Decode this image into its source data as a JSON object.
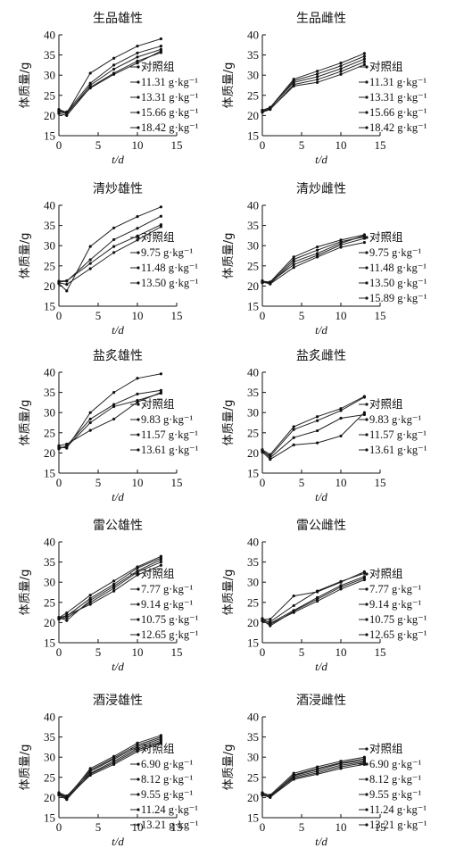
{
  "chart_data": [
    {
      "type": "line",
      "title": "生品雄性",
      "xlabel": "t/d",
      "ylabel": "体质量/g",
      "xlim": [
        0,
        15
      ],
      "ylim": [
        15,
        40
      ],
      "xticks": [
        0,
        5,
        10,
        15
      ],
      "yticks": [
        15,
        20,
        25,
        30,
        35,
        40
      ],
      "x": [
        0,
        1,
        4,
        7,
        10,
        13
      ],
      "series": [
        {
          "name": "对照组",
          "values": [
            21.3,
            20.6,
            30.5,
            34.2,
            37.2,
            39.0
          ]
        },
        {
          "name": "11.31 g·kg⁻¹",
          "values": [
            20.8,
            20.9,
            28.0,
            32.5,
            35.5,
            37.2
          ]
        },
        {
          "name": "13.31 g·kg⁻¹",
          "values": [
            21.0,
            20.4,
            27.5,
            31.5,
            34.5,
            36.4
          ]
        },
        {
          "name": "15.66 g·kg⁻¹",
          "values": [
            20.5,
            20.0,
            27.0,
            30.5,
            33.5,
            35.6
          ]
        },
        {
          "name": "18.42 g·kg⁻¹",
          "values": [
            21.5,
            20.8,
            26.8,
            30.2,
            33.0,
            36.0
          ]
        }
      ]
    },
    {
      "type": "line",
      "title": "生品雌性",
      "xlabel": "t/d",
      "ylabel": "体质量/g",
      "xlim": [
        0,
        15
      ],
      "ylim": [
        15,
        40
      ],
      "xticks": [
        0,
        5,
        10,
        15
      ],
      "yticks": [
        15,
        20,
        25,
        30,
        35,
        40
      ],
      "x": [
        0,
        1,
        4,
        7,
        10,
        13
      ],
      "series": [
        {
          "name": "对照组",
          "values": [
            21.3,
            22.0,
            29.0,
            31.0,
            33.0,
            35.4
          ]
        },
        {
          "name": "11.31 g·kg⁻¹",
          "values": [
            21.0,
            21.8,
            28.6,
            30.3,
            32.3,
            34.7
          ]
        },
        {
          "name": "13.31 g·kg⁻¹",
          "values": [
            21.2,
            22.0,
            28.2,
            29.6,
            31.6,
            34.0
          ]
        },
        {
          "name": "15.66 g·kg⁻¹",
          "values": [
            20.8,
            21.5,
            27.7,
            28.9,
            30.9,
            33.3
          ]
        },
        {
          "name": "18.42 g·kg⁻¹",
          "values": [
            21.0,
            21.6,
            27.3,
            28.2,
            30.2,
            32.6
          ]
        }
      ]
    },
    {
      "type": "line",
      "title": "清炒雄性",
      "xlabel": "t/d",
      "ylabel": "体质量/g",
      "xlim": [
        0,
        15
      ],
      "ylim": [
        15,
        40
      ],
      "xticks": [
        0,
        5,
        10,
        15
      ],
      "yticks": [
        15,
        20,
        25,
        30,
        35,
        40
      ],
      "x": [
        0,
        1,
        4,
        7,
        10,
        13
      ],
      "series": [
        {
          "name": "对照组",
          "values": [
            20.6,
            18.8,
            29.8,
            34.4,
            37.2,
            39.6
          ]
        },
        {
          "name": "9.75 g·kg⁻¹",
          "values": [
            21.0,
            21.2,
            26.5,
            31.5,
            34.3,
            37.3
          ]
        },
        {
          "name": "11.48 g·kg⁻¹",
          "values": [
            21.2,
            21.3,
            25.6,
            29.8,
            32.4,
            35.2
          ]
        },
        {
          "name": "13.50 g·kg⁻¹",
          "values": [
            20.8,
            20.4,
            24.3,
            28.3,
            31.4,
            34.7
          ]
        }
      ]
    },
    {
      "type": "line",
      "title": "清炒雌性",
      "xlabel": "t/d",
      "ylabel": "体质量/g",
      "xlim": [
        0,
        15
      ],
      "ylim": [
        15,
        40
      ],
      "xticks": [
        0,
        5,
        10,
        15
      ],
      "yticks": [
        15,
        20,
        25,
        30,
        35,
        40
      ],
      "x": [
        0,
        1,
        4,
        7,
        10,
        13
      ],
      "series": [
        {
          "name": "对照组",
          "values": [
            21.2,
            21.0,
            27.2,
            29.7,
            31.4,
            32.7
          ]
        },
        {
          "name": "9.75 g·kg⁻¹",
          "values": [
            21.0,
            20.8,
            26.6,
            28.9,
            31.0,
            32.2
          ]
        },
        {
          "name": "11.48 g·kg⁻¹",
          "values": [
            21.3,
            20.6,
            26.0,
            28.1,
            30.6,
            32.5
          ]
        },
        {
          "name": "13.50 g·kg⁻¹",
          "values": [
            20.8,
            20.9,
            25.3,
            27.6,
            30.2,
            31.8
          ]
        },
        {
          "name": "15.89 g·kg⁻¹",
          "values": [
            21.0,
            20.5,
            24.6,
            27.2,
            29.6,
            30.8
          ]
        }
      ]
    },
    {
      "type": "line",
      "title": "盐炙雄性",
      "xlabel": "t/d",
      "ylabel": "体质量/g",
      "xlim": [
        0,
        15
      ],
      "ylim": [
        15,
        40
      ],
      "xticks": [
        0,
        5,
        10,
        15
      ],
      "yticks": [
        15,
        20,
        25,
        30,
        35,
        40
      ],
      "x": [
        0,
        1,
        4,
        7,
        10,
        13
      ],
      "series": [
        {
          "name": "对照组",
          "values": [
            21.5,
            21.2,
            30.0,
            35.0,
            38.5,
            39.6
          ]
        },
        {
          "name": "9.83 g·kg⁻¹",
          "values": [
            21.0,
            21.8,
            28.4,
            32.0,
            34.6,
            35.5
          ]
        },
        {
          "name": "11.57 g·kg⁻¹",
          "values": [
            21.3,
            21.5,
            27.5,
            31.5,
            33.0,
            34.8
          ]
        },
        {
          "name": "13.61 g·kg⁻¹",
          "values": [
            21.8,
            22.2,
            25.6,
            28.4,
            32.6,
            35.0
          ]
        }
      ]
    },
    {
      "type": "line",
      "title": "盐炙雌性",
      "xlabel": "t/d",
      "ylabel": "体质量/g",
      "xlim": [
        0,
        15
      ],
      "ylim": [
        15,
        40
      ],
      "xticks": [
        0,
        5,
        10,
        15
      ],
      "yticks": [
        15,
        20,
        25,
        30,
        35,
        40
      ],
      "x": [
        0,
        1,
        4,
        7,
        10,
        13
      ],
      "series": [
        {
          "name": "对照组",
          "values": [
            20.8,
            19.6,
            26.5,
            29.0,
            31.0,
            34.0
          ]
        },
        {
          "name": "9.83 g·kg⁻¹",
          "values": [
            20.5,
            19.2,
            25.8,
            28.0,
            30.5,
            33.8
          ]
        },
        {
          "name": "11.57 g·kg⁻¹",
          "values": [
            20.6,
            18.8,
            23.8,
            25.5,
            28.6,
            29.5
          ]
        },
        {
          "name": "13.61 g·kg⁻¹",
          "values": [
            20.2,
            18.4,
            22.0,
            22.5,
            24.2,
            30.0
          ]
        }
      ]
    },
    {
      "type": "line",
      "title": "雷公雄性",
      "xlabel": "t/d",
      "ylabel": "体质量/g",
      "xlim": [
        0,
        15
      ],
      "ylim": [
        15,
        40
      ],
      "xticks": [
        0,
        5,
        10,
        15
      ],
      "yticks": [
        15,
        20,
        25,
        30,
        35,
        40
      ],
      "x": [
        0,
        1,
        4,
        7,
        10,
        13
      ],
      "series": [
        {
          "name": "对照组",
          "values": [
            21.2,
            22.4,
            26.8,
            30.3,
            33.8,
            36.4
          ]
        },
        {
          "name": "7.77 g·kg⁻¹",
          "values": [
            21.0,
            21.6,
            26.0,
            29.5,
            33.5,
            36.0
          ]
        },
        {
          "name": "9.14 g·kg⁻¹",
          "values": [
            21.3,
            20.5,
            25.5,
            29.0,
            32.8,
            35.6
          ]
        },
        {
          "name": "10.75 g·kg⁻¹",
          "values": [
            20.8,
            21.2,
            25.0,
            28.5,
            32.5,
            35.0
          ]
        },
        {
          "name": "12.65 g·kg⁻¹",
          "values": [
            21.1,
            21.8,
            24.5,
            27.8,
            31.8,
            34.2
          ]
        }
      ]
    },
    {
      "type": "line",
      "title": "雷公雌性",
      "xlabel": "t/d",
      "ylabel": "体质量/g",
      "xlim": [
        0,
        15
      ],
      "ylim": [
        15,
        40
      ],
      "xticks": [
        0,
        5,
        10,
        15
      ],
      "yticks": [
        15,
        20,
        25,
        30,
        35,
        40
      ],
      "x": [
        0,
        1,
        4,
        7,
        10,
        13
      ],
      "series": [
        {
          "name": "对照组",
          "values": [
            20.8,
            20.8,
            26.6,
            27.6,
            30.0,
            32.6
          ]
        },
        {
          "name": "7.77 g·kg⁻¹",
          "values": [
            20.5,
            20.2,
            24.2,
            27.8,
            30.2,
            32.2
          ]
        },
        {
          "name": "9.14 g·kg⁻¹",
          "values": [
            21.0,
            19.8,
            23.0,
            26.2,
            29.2,
            31.4
          ]
        },
        {
          "name": "10.75 g·kg⁻¹",
          "values": [
            20.6,
            19.2,
            22.8,
            25.8,
            28.8,
            31.0
          ]
        },
        {
          "name": "12.65 g·kg⁻¹",
          "values": [
            20.4,
            19.6,
            22.5,
            25.3,
            28.3,
            30.6
          ]
        }
      ]
    },
    {
      "type": "line",
      "title": "酒浸雄性",
      "xlabel": "t/d",
      "ylabel": "体质量/g",
      "xlim": [
        0,
        15
      ],
      "ylim": [
        15,
        40
      ],
      "xticks": [
        0,
        5,
        10,
        15
      ],
      "yticks": [
        15,
        20,
        25,
        30,
        35,
        40
      ],
      "x": [
        0,
        1,
        4,
        7,
        10,
        13
      ],
      "series": [
        {
          "name": "对照组",
          "values": [
            20.8,
            19.8,
            27.2,
            30.2,
            33.5,
            35.4
          ]
        },
        {
          "name": "6.90 g·kg⁻¹",
          "values": [
            21.0,
            20.2,
            26.8,
            29.8,
            33.0,
            35.0
          ]
        },
        {
          "name": "8.12 g·kg⁻¹",
          "values": [
            20.6,
            19.5,
            26.5,
            29.5,
            32.6,
            34.6
          ]
        },
        {
          "name": "9.55 g·kg⁻¹",
          "values": [
            21.2,
            20.4,
            26.0,
            29.0,
            32.2,
            34.2
          ]
        },
        {
          "name": "11.24 g·kg⁻¹",
          "values": [
            20.9,
            19.6,
            25.8,
            28.6,
            31.8,
            33.8
          ]
        },
        {
          "name": "13.21 g·kg⁻¹",
          "values": [
            21.1,
            20.0,
            25.5,
            28.2,
            31.4,
            33.4
          ]
        }
      ]
    },
    {
      "type": "line",
      "title": "酒浸雌性",
      "xlabel": "t/d",
      "ylabel": "体质量/g",
      "xlim": [
        0,
        15
      ],
      "ylim": [
        15,
        40
      ],
      "xticks": [
        0,
        5,
        10,
        15
      ],
      "yticks": [
        15,
        20,
        25,
        30,
        35,
        40
      ],
      "x": [
        0,
        1,
        4,
        7,
        10,
        13
      ],
      "series": [
        {
          "name": "对照组",
          "values": [
            21.0,
            20.6,
            26.0,
            27.6,
            29.0,
            30.0
          ]
        },
        {
          "name": "6.90 g·kg⁻¹",
          "values": [
            20.8,
            20.2,
            25.6,
            27.2,
            28.6,
            29.6
          ]
        },
        {
          "name": "8.12 g·kg⁻¹",
          "values": [
            21.2,
            20.4,
            25.4,
            26.9,
            28.4,
            29.2
          ]
        },
        {
          "name": "9.55 g·kg⁻¹",
          "values": [
            20.6,
            20.0,
            25.1,
            26.5,
            28.0,
            28.9
          ]
        },
        {
          "name": "11.24 g·kg⁻¹",
          "values": [
            21.1,
            20.5,
            24.8,
            26.1,
            27.6,
            28.6
          ]
        },
        {
          "name": "13.21 g·kg⁻¹",
          "values": [
            20.9,
            20.1,
            24.5,
            25.8,
            27.2,
            28.2
          ]
        }
      ]
    }
  ]
}
